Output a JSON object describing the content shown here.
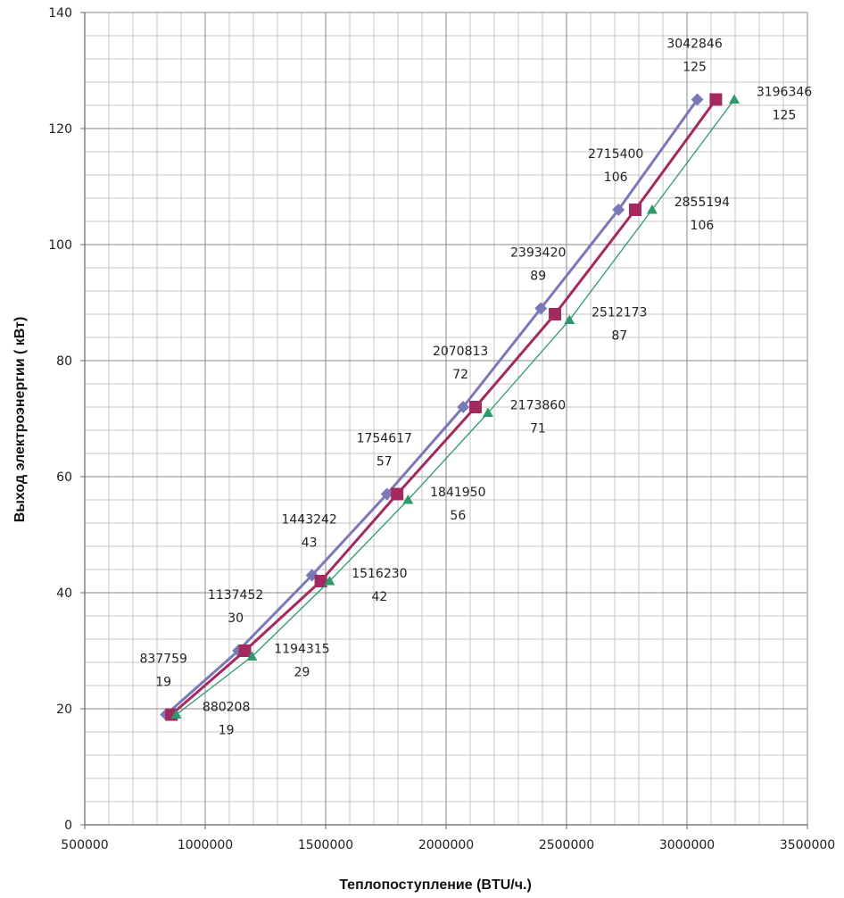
{
  "chart_data": {
    "type": "line",
    "title": "",
    "xlabel": "Теплопоступление (BTU/ч.)",
    "ylabel": "Выход электроэнергии ( кВт)",
    "xlim": [
      500000,
      3500000
    ],
    "ylim": [
      0,
      140
    ],
    "xticks": [
      500000,
      1000000,
      1500000,
      2000000,
      2500000,
      3000000,
      3500000
    ],
    "yticks": [
      0,
      20,
      40,
      60,
      80,
      100,
      120,
      140
    ],
    "x_major_step": 500000,
    "x_minor_step": 100000,
    "y_major_step": 20,
    "y_minor_step": 4,
    "grid": true,
    "legend": "none",
    "series": [
      {
        "name": "",
        "color": "#7b78b8",
        "marker": "diamond",
        "points": [
          {
            "x": 837759,
            "y": 19
          },
          {
            "x": 1137452,
            "y": 30
          },
          {
            "x": 1443242,
            "y": 43
          },
          {
            "x": 1754617,
            "y": 57
          },
          {
            "x": 2070813,
            "y": 72
          },
          {
            "x": 2393420,
            "y": 89
          },
          {
            "x": 2715400,
            "y": 106
          },
          {
            "x": 3042846,
            "y": 125
          }
        ],
        "labels": [
          {
            "x_text": "837759",
            "y_text": "19"
          },
          {
            "x_text": "1137452",
            "y_text": "30"
          },
          {
            "x_text": "1443242",
            "y_text": "43"
          },
          {
            "x_text": "1754617",
            "y_text": "57"
          },
          {
            "x_text": "2070813",
            "y_text": "72"
          },
          {
            "x_text": "2393420",
            "y_text": "89"
          },
          {
            "x_text": "2715400",
            "y_text": "106"
          },
          {
            "x_text": "3042846",
            "y_text": "125"
          }
        ]
      },
      {
        "name": "",
        "color": "#a3295e",
        "marker": "square",
        "points": [
          {
            "x": 860000,
            "y": 19
          },
          {
            "x": 1165000,
            "y": 30
          },
          {
            "x": 1480000,
            "y": 42
          },
          {
            "x": 1797000,
            "y": 57
          },
          {
            "x": 2122000,
            "y": 72
          },
          {
            "x": 2452000,
            "y": 88
          },
          {
            "x": 2785000,
            "y": 106
          },
          {
            "x": 3120000,
            "y": 125
          }
        ],
        "labels": []
      },
      {
        "name": "",
        "color": "#2e9a6c",
        "marker": "triangle",
        "points": [
          {
            "x": 880208,
            "y": 19
          },
          {
            "x": 1194315,
            "y": 29
          },
          {
            "x": 1516230,
            "y": 42
          },
          {
            "x": 1841950,
            "y": 56
          },
          {
            "x": 2173860,
            "y": 71
          },
          {
            "x": 2512173,
            "y": 87
          },
          {
            "x": 2855194,
            "y": 106
          },
          {
            "x": 3196346,
            "y": 125
          }
        ],
        "labels": [
          {
            "x_text": "880208",
            "y_text": "19"
          },
          {
            "x_text": "1194315",
            "y_text": "29"
          },
          {
            "x_text": "1516230",
            "y_text": "42"
          },
          {
            "x_text": "1841950",
            "y_text": "56"
          },
          {
            "x_text": "2173860",
            "y_text": "71"
          },
          {
            "x_text": "2512173",
            "y_text": "87"
          },
          {
            "x_text": "2855194",
            "y_text": "106"
          },
          {
            "x_text": "3196346",
            "y_text": "125"
          }
        ]
      }
    ]
  }
}
